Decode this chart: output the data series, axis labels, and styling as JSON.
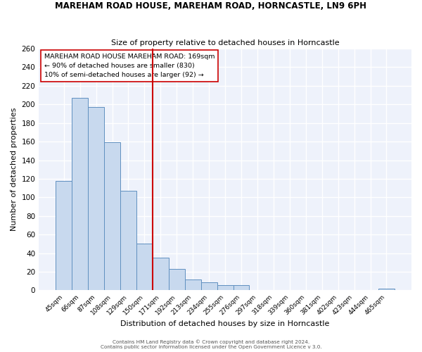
{
  "title": "MAREHAM ROAD HOUSE, MAREHAM ROAD, HORNCASTLE, LN9 6PH",
  "subtitle": "Size of property relative to detached houses in Horncastle",
  "xlabel": "Distribution of detached houses by size in Horncastle",
  "ylabel": "Number of detached properties",
  "bar_labels": [
    "45sqm",
    "66sqm",
    "87sqm",
    "108sqm",
    "129sqm",
    "150sqm",
    "171sqm",
    "192sqm",
    "213sqm",
    "234sqm",
    "255sqm",
    "276sqm",
    "297sqm",
    "318sqm",
    "339sqm",
    "360sqm",
    "381sqm",
    "402sqm",
    "423sqm",
    "444sqm",
    "465sqm"
  ],
  "bar_values": [
    118,
    207,
    197,
    159,
    107,
    50,
    35,
    23,
    12,
    9,
    6,
    6,
    0,
    0,
    0,
    0,
    0,
    0,
    0,
    0,
    2
  ],
  "bar_color": "#c8d9ee",
  "bar_edge_color": "#6090c0",
  "vline_index": 6,
  "vline_color": "#cc0000",
  "annotation_title": "MAREHAM ROAD HOUSE MAREHAM ROAD: 169sqm",
  "annotation_line1": "← 90% of detached houses are smaller (830)",
  "annotation_line2": "10% of semi-detached houses are larger (92) →",
  "annotation_box_color": "#ffffff",
  "annotation_box_edge": "#cc0000",
  "ylim": [
    0,
    260
  ],
  "yticks": [
    0,
    20,
    40,
    60,
    80,
    100,
    120,
    140,
    160,
    180,
    200,
    220,
    240,
    260
  ],
  "footer1": "Contains HM Land Registry data © Crown copyright and database right 2024.",
  "footer2": "Contains public sector information licensed under the Open Government Licence v 3.0.",
  "background_color": "#eef2fb",
  "grid_color": "#ffffff",
  "fig_bg": "#ffffff"
}
